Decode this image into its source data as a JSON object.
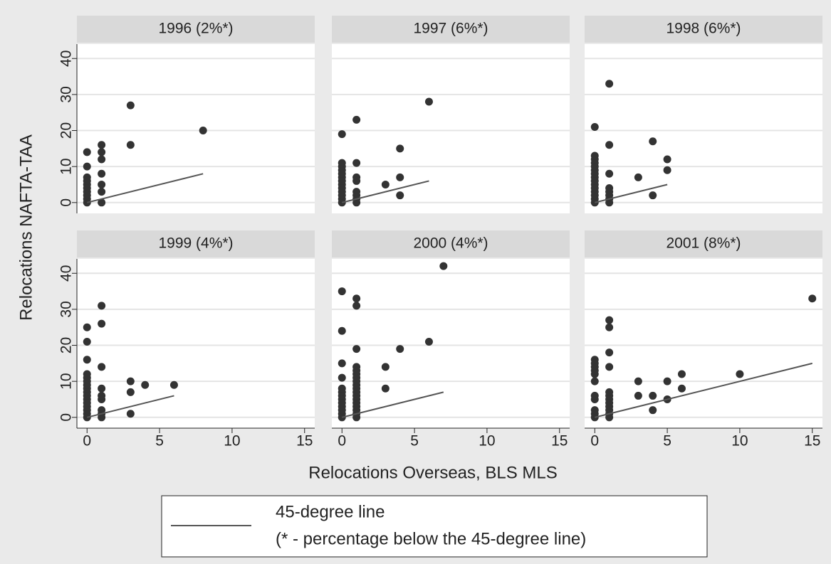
{
  "xlabel": "Relocations Overseas, BLS MLS",
  "ylabel": "Relocations NAFTA-TAA",
  "legend": {
    "label": "45-degree line",
    "note": "(* - percentage below the 45-degree line)",
    "color": "#555555"
  },
  "chart_data": [
    {
      "type": "scatter",
      "title": "1996 (2%*)",
      "xlim": [
        -0.7,
        15.7
      ],
      "ylim": [
        -3,
        44
      ],
      "xticks": [
        0,
        5,
        10,
        15
      ],
      "yticks": [
        0,
        10,
        20,
        30,
        40
      ],
      "grid": true,
      "points": {
        "color": "#333333",
        "x": [
          0,
          0,
          0,
          0,
          0,
          0,
          0,
          0,
          0,
          0,
          1,
          1,
          1,
          1,
          1,
          1,
          1,
          3,
          3,
          8
        ],
        "y": [
          0,
          1,
          2,
          3,
          4,
          5,
          6,
          7,
          10,
          14,
          0,
          3,
          5,
          8,
          12,
          14,
          16,
          16,
          27,
          20
        ]
      },
      "line": {
        "color": "#555555",
        "x": [
          0,
          8
        ],
        "y": [
          0,
          8
        ]
      }
    },
    {
      "type": "scatter",
      "title": "1997 (6%*)",
      "xlim": [
        -0.7,
        15.7
      ],
      "ylim": [
        -3,
        44
      ],
      "xticks": [
        0,
        5,
        10,
        15
      ],
      "yticks": [
        0,
        10,
        20,
        30,
        40
      ],
      "grid": true,
      "points": {
        "color": "#333333",
        "x": [
          0,
          0,
          0,
          0,
          0,
          0,
          0,
          0,
          0,
          0,
          0,
          0,
          0,
          1,
          1,
          1,
          1,
          1,
          1,
          1,
          1,
          3,
          4,
          4,
          4,
          6
        ],
        "y": [
          0,
          1,
          2,
          3,
          4,
          5,
          6,
          7,
          8,
          9,
          10,
          11,
          19,
          0,
          1,
          2,
          3,
          6,
          7,
          11,
          23,
          5,
          2,
          7,
          15,
          28
        ]
      },
      "line": {
        "color": "#555555",
        "x": [
          0,
          6
        ],
        "y": [
          0,
          6
        ]
      }
    },
    {
      "type": "scatter",
      "title": "1998 (6%*)",
      "xlim": [
        -0.7,
        15.7
      ],
      "ylim": [
        -3,
        44
      ],
      "xticks": [
        0,
        5,
        10,
        15
      ],
      "yticks": [
        0,
        10,
        20,
        30,
        40
      ],
      "grid": true,
      "points": {
        "color": "#333333",
        "x": [
          0,
          0,
          0,
          0,
          0,
          0,
          0,
          0,
          0,
          0,
          0,
          0,
          0,
          0,
          0,
          1,
          1,
          1,
          1,
          1,
          1,
          1,
          1,
          3,
          4,
          4,
          5,
          5
        ],
        "y": [
          0,
          1,
          2,
          3,
          4,
          5,
          6,
          7,
          8,
          9,
          10,
          11,
          12,
          13,
          21,
          0,
          1,
          2,
          3,
          4,
          8,
          16,
          33,
          7,
          2,
          17,
          9,
          12
        ]
      },
      "line": {
        "color": "#555555",
        "x": [
          0,
          5
        ],
        "y": [
          0,
          5
        ]
      }
    },
    {
      "type": "scatter",
      "title": "1999 (4%*)",
      "xlim": [
        -0.7,
        15.7
      ],
      "ylim": [
        -3,
        44
      ],
      "xticks": [
        0,
        5,
        10,
        15
      ],
      "yticks": [
        0,
        10,
        20,
        30,
        40
      ],
      "grid": true,
      "points": {
        "color": "#333333",
        "x": [
          0,
          0,
          0,
          0,
          0,
          0,
          0,
          0,
          0,
          0,
          0,
          0,
          0,
          0,
          0,
          0,
          1,
          1,
          1,
          1,
          1,
          1,
          1,
          1,
          1,
          3,
          3,
          3,
          4,
          6
        ],
        "y": [
          0,
          1,
          2,
          3,
          4,
          5,
          6,
          7,
          8,
          9,
          10,
          11,
          12,
          16,
          21,
          25,
          0,
          1,
          2,
          5,
          6,
          8,
          14,
          26,
          31,
          1,
          7,
          10,
          9,
          9
        ]
      },
      "line": {
        "color": "#555555",
        "x": [
          0,
          6
        ],
        "y": [
          0,
          6
        ]
      }
    },
    {
      "type": "scatter",
      "title": "2000 (4%*)",
      "xlim": [
        -0.7,
        15.7
      ],
      "ylim": [
        -3,
        44
      ],
      "xticks": [
        0,
        5,
        10,
        15
      ],
      "yticks": [
        0,
        10,
        20,
        30,
        40
      ],
      "grid": true,
      "points": {
        "color": "#333333",
        "x": [
          0,
          0,
          0,
          0,
          0,
          0,
          0,
          0,
          0,
          0,
          0,
          0,
          0,
          1,
          1,
          1,
          1,
          1,
          1,
          1,
          1,
          1,
          1,
          1,
          1,
          1,
          1,
          1,
          1,
          1,
          1,
          3,
          3,
          4,
          6,
          7
        ],
        "y": [
          0,
          1,
          2,
          3,
          4,
          5,
          6,
          7,
          8,
          11,
          15,
          24,
          35,
          0,
          1,
          2,
          3,
          4,
          5,
          6,
          7,
          8,
          9,
          10,
          11,
          12,
          13,
          14,
          19,
          31,
          33,
          8,
          14,
          19,
          21,
          42
        ]
      },
      "line": {
        "color": "#555555",
        "x": [
          0,
          7
        ],
        "y": [
          0,
          7
        ]
      }
    },
    {
      "type": "scatter",
      "title": "2001 (8%*)",
      "xlim": [
        -0.7,
        15.7
      ],
      "ylim": [
        -3,
        44
      ],
      "xticks": [
        0,
        5,
        10,
        15
      ],
      "yticks": [
        0,
        10,
        20,
        30,
        40
      ],
      "grid": true,
      "points": {
        "color": "#333333",
        "x": [
          0,
          0,
          0,
          0,
          0,
          0,
          0,
          0,
          0,
          0,
          0,
          1,
          1,
          1,
          1,
          1,
          1,
          1,
          1,
          1,
          1,
          1,
          1,
          3,
          3,
          4,
          4,
          5,
          5,
          6,
          6,
          10,
          15
        ],
        "y": [
          0,
          1,
          2,
          5,
          6,
          10,
          12,
          13,
          14,
          15,
          16,
          0,
          1,
          2,
          3,
          4,
          5,
          6,
          7,
          14,
          18,
          25,
          27,
          6,
          10,
          2,
          6,
          5,
          10,
          8,
          12,
          12,
          33
        ]
      },
      "line": {
        "color": "#555555",
        "x": [
          0,
          15
        ],
        "y": [
          0,
          15
        ]
      }
    }
  ]
}
